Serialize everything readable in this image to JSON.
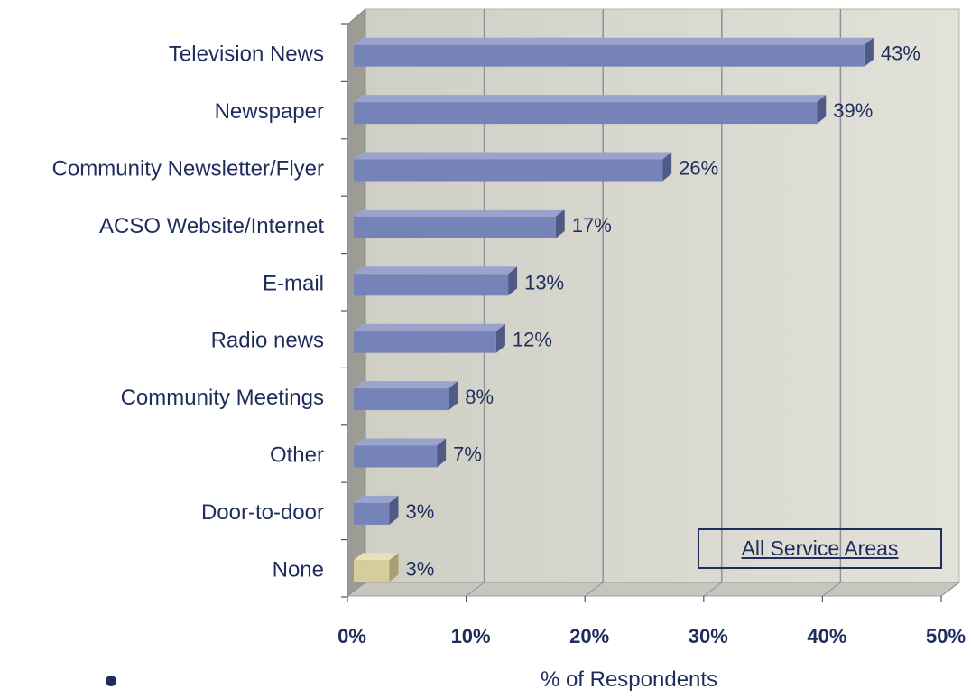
{
  "chart_data": {
    "type": "bar",
    "orientation": "horizontal",
    "categories": [
      "Television News",
      "Newspaper",
      "Community Newsletter/Flyer",
      "ACSO Website/Internet",
      "E-mail",
      "Radio news",
      "Community Meetings",
      "Other",
      "Door-to-door",
      "None"
    ],
    "values": [
      43,
      39,
      26,
      17,
      13,
      12,
      8,
      7,
      3,
      3
    ],
    "value_labels": [
      "43%",
      "39%",
      "26%",
      "17%",
      "13%",
      "12%",
      "8%",
      "7%",
      "3%",
      "3%"
    ],
    "xlabel": "% of Respondents",
    "xlim": [
      0,
      50
    ],
    "xticks": [
      "0%",
      "10%",
      "20%",
      "30%",
      "40%",
      "50%"
    ],
    "annotation": "All Service Areas",
    "grid": true,
    "colors": {
      "bar": "#7683b8",
      "bar_highlight": "#d7cd9a",
      "wall": "#d8d8d0",
      "text": "#1f2d5c"
    }
  }
}
